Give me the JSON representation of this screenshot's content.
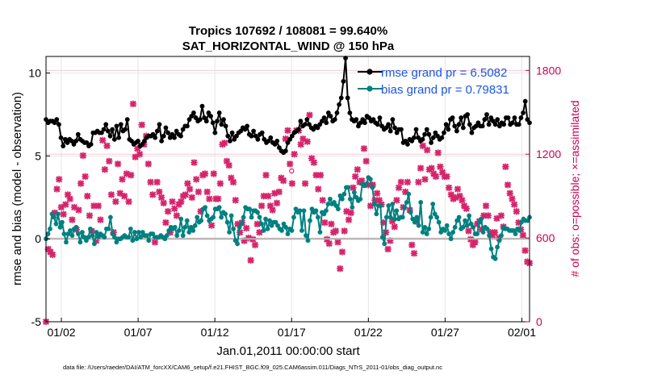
{
  "chart_data": {
    "type": "line",
    "title_line1": "Tropics 107692 / 108081 = 99.640%",
    "title_line2": "SAT_HORIZONTAL_WIND @ 150 hPa",
    "xlabel": "Jan.01,2011 00:00:00 start",
    "ylabel": "rmse and bias (model - observation)",
    "ylabel_right": "# of obs: o=possible; ×=assimilated",
    "xlim": [
      0,
      31.5
    ],
    "ylim": [
      -5,
      11
    ],
    "ylim_right": [
      0,
      1900
    ],
    "x_ticks": [
      {
        "x": 1,
        "label": "01/02"
      },
      {
        "x": 6,
        "label": "01/07"
      },
      {
        "x": 11,
        "label": "01/12"
      },
      {
        "x": 16,
        "label": "01/17"
      },
      {
        "x": 21,
        "label": "01/22"
      },
      {
        "x": 26,
        "label": "01/27"
      },
      {
        "x": 31,
        "label": "02/01"
      }
    ],
    "y_ticks": [
      -5,
      0,
      5,
      10
    ],
    "y_ticks_right": [
      0,
      600,
      1200,
      1800
    ],
    "grid": true,
    "legend_position": "top-right",
    "colors": {
      "rmse": "#000000",
      "bias": "#008080",
      "obs": "#d6246b",
      "zero_line": "#b3b3b3"
    },
    "series": [
      {
        "name": "rmse grand pr = 6.5082",
        "key": "rmse",
        "values": [
          7.2,
          7.0,
          7.1,
          7.1,
          7.0,
          7.2,
          6.9,
          6.1,
          5.6,
          6.0,
          5.8,
          6.0,
          5.9,
          5.7,
          5.9,
          6.3,
          6.0,
          5.9,
          5.8,
          5.8,
          5.6,
          5.7,
          6.4,
          6.4,
          6.5,
          6.4,
          6.4,
          6.6,
          6.9,
          6.5,
          6.2,
          6.6,
          6.0,
          6.8,
          6.1,
          6.9,
          6.5,
          6.6,
          7.2,
          6.0,
          5.9,
          5.7,
          5.8,
          5.9,
          5.6,
          5.7,
          5.9,
          6.1,
          6.2,
          6.2,
          6.3,
          6.1,
          6.5,
          6.9,
          5.9,
          6.2,
          6.7,
          6.4,
          6.1,
          6.3,
          6.1,
          6.5,
          6.3,
          6.2,
          6.6,
          6.8,
          6.8,
          7.2,
          7.4,
          7.6,
          7.3,
          7.1,
          7.2,
          8.0,
          7.3,
          7.1,
          7.6,
          7.4,
          7.0,
          6.4,
          7.1,
          7.6,
          6.9,
          7.2,
          6.8,
          6.2,
          5.9,
          6.4,
          6.0,
          6.2,
          6.4,
          6.5,
          6.7,
          6.6,
          6.8,
          6.3,
          6.2,
          6.5,
          6.2,
          6.0,
          6.3,
          6.4,
          6.0,
          5.8,
          5.9,
          6.1,
          5.8,
          5.7,
          5.9,
          5.5,
          5.3,
          5.2,
          5.3,
          5.8,
          6.0,
          6.2,
          6.4,
          6.5,
          6.6,
          7.1,
          6.8,
          6.9,
          7.2,
          6.9,
          6.7,
          6.6,
          6.8,
          6.7,
          6.9,
          7.1,
          7.3,
          7.0,
          7.6,
          7.4,
          7.1,
          7.2,
          7.6,
          8.1,
          8.5,
          9.5,
          10.9,
          8.5,
          7.6,
          7.2,
          7.1,
          7.2,
          6.8,
          7.0,
          7.2,
          7.0,
          7.4,
          7.3,
          7.1,
          7.2,
          7.0,
          6.9,
          7.3,
          6.8,
          6.6,
          6.7,
          6.9,
          6.5,
          7.2,
          6.7,
          6.4,
          6.6,
          6.6,
          5.8,
          5.9,
          5.7,
          6.0,
          5.9,
          6.1,
          6.6,
          6.1,
          5.9,
          6.0,
          6.3,
          6.6,
          6.3,
          5.8,
          6.1,
          6.4,
          6.2,
          6.0,
          6.1,
          6.4,
          6.9,
          6.6,
          7.2,
          7.3,
          6.8,
          6.5,
          6.9,
          7.3,
          6.7,
          7.4,
          7.5,
          6.9,
          6.4,
          6.7,
          6.8,
          7.0,
          6.8,
          6.8,
          7.2,
          7.5,
          6.9,
          7.3,
          7.1,
          6.9,
          7.2,
          6.8,
          7.0,
          6.9,
          7.3,
          7.3,
          6.9,
          7.0,
          7.3,
          6.9,
          6.9,
          7.3,
          7.6,
          8.3,
          7.2,
          7.0
        ]
      },
      {
        "name": "bias grand pr = 0.79831",
        "key": "bias",
        "values": [
          0.0,
          0.3,
          0.6,
          1.5,
          1.3,
          0.9,
          1.5,
          0.7,
          1.0,
          0.3,
          -0.2,
          0.3,
          0.5,
          0.2,
          0.6,
          0.7,
          0.3,
          -0.2,
          0.4,
          0.1,
          -0.1,
          0.1,
          0.6,
          0.2,
          -0.3,
          0.4,
          0.1,
          0.3,
          0.2,
          0.1,
          0.6,
          0.6,
          1.3,
          0.3,
          0.1,
          -0.2,
          0.0,
          0.0,
          0.1,
          0.2,
          0.1,
          0.1,
          0.6,
          -0.1,
          0.4,
          0.0,
          0.4,
          0.1,
          0.4,
          0.2,
          0.2,
          -0.1,
          0.3,
          0.3,
          0.1,
          0.1,
          0.1,
          0.2,
          0.1,
          0.0,
          0.2,
          0.5,
          0.7,
          0.6,
          0.7,
          0.2,
          0.5,
          1.2,
          0.2,
          0.7,
          1.1,
          0.4,
          0.7,
          0.5,
          0.8,
          1.3,
          1.0,
          1.1,
          1.8,
          1.9,
          1.4,
          1.1,
          1.2,
          1.3,
          1.8,
          1.8,
          1.9,
          1.3,
          1.6,
          1.5,
          1.0,
          0.4,
          1.4,
          0.6,
          -0.1,
          -0.3,
          0.7,
          0.9,
          1.3,
          1.9,
          1.8,
          1.8,
          1.3,
          1.7,
          1.7,
          1.6,
          1.3,
          0.9,
          0.5,
          1.2,
          0.6,
          1.1,
          0.8,
          1.0,
          1.0,
          0.8,
          0.6,
          0.5,
          0.9,
          0.7,
          0.3,
          0.6,
          0.5,
          1.3,
          1.8,
          1.6,
          1.7,
          0.5,
          1.7,
          0.2,
          -0.1,
          1.1,
          1.8,
          1.6,
          1.7,
          1.3,
          0.4,
          1.6,
          1.5,
          1.7,
          2.1,
          2.4,
          2.1,
          2.2,
          2.0,
          1.8,
          2.6,
          2.4,
          2.7,
          3.1,
          3.1,
          2.4,
          1.9,
          2.8,
          2.5,
          2.3,
          2.4,
          3.3,
          3.2,
          3.3,
          3.7,
          3.6,
          3.1,
          2.1,
          1.5,
          2.0,
          2.0,
          0.1,
          -0.3,
          1.3,
          2.0,
          1.3,
          2.1,
          1.2,
          1.7,
          1.2,
          1.3,
          1.3,
          1.9,
          2.2,
          2.7,
          1.6,
          1.2,
          1.0,
          1.3,
          0.8,
          2.2,
          0.4,
          0.7,
          0.3,
          0.6,
          1.3,
          2.1,
          1.5,
          1.3,
          1.0,
          0.4,
          0.6,
          0.5,
          0.8,
          0.3,
          0.0,
          0.4,
          0.7,
          1.1,
          1.3,
          0.6,
          0.7,
          1.1,
          0.8,
          1.4,
          0.9,
          0.7,
          0.3,
          0.3,
          1.0,
          1.2,
          0.4,
          0.7,
          0.6,
          0.2,
          -0.6,
          -1.1,
          -1.2,
          -0.5,
          -0.1,
          0.2,
          0.7,
          0.6,
          0.6,
          0.5,
          0.5,
          0.5,
          0.3,
          0.6,
          0.5,
          1.0,
          1.2,
          1.1,
          1.1,
          1.3
        ]
      },
      {
        "name": "assimilated observations",
        "key": "obs_assimilated",
        "values": [
          0,
          520,
          500,
          480,
          780,
          950,
          1020,
          820,
          770,
          840,
          910,
          880,
          730,
          820,
          660,
          800,
          990,
          1190,
          1040,
          900,
          760,
          650,
          830,
          580,
          830,
          730,
          1300,
          1090,
          1260,
          1150,
          910,
          640,
          860,
          1130,
          920,
          1020,
          900,
          1060,
          860,
          1050,
          1560,
          1180,
          1240,
          1200,
          1410,
          1270,
          1330,
          1130,
          1000,
          910,
          570,
          1000,
          930,
          890,
          850,
          710,
          790,
          640,
          860,
          810,
          760,
          840,
          860,
          900,
          910,
          990,
          950,
          890,
          1140,
          1020,
          930,
          790,
          1050,
          1060,
          930,
          880,
          690,
          1060,
          880,
          880,
          990,
          1270,
          1280,
          1150,
          1120,
          1030,
          1000,
          870,
          700,
          640,
          710,
          580,
          670,
          600,
          440,
          590,
          550,
          700,
          640,
          830,
          900,
          1050,
          900,
          830,
          800,
          920,
          850,
          930,
          1030,
          1010,
          1310,
          1370,
          1130,
          990,
          1200,
          1370,
          1370,
          1270,
          1310,
          990,
          1290,
          1480,
          1170,
          1140,
          1050,
          950,
          1050,
          870,
          710,
          590,
          560,
          700,
          640,
          650,
          570,
          380,
          500,
          650,
          790,
          730,
          780,
          960,
          1040,
          1090,
          1000,
          1010,
          1240,
          1150,
          980,
          830,
          980,
          870,
          920,
          870,
          840,
          710,
          640,
          520,
          580,
          720,
          680,
          870,
          960,
          1000,
          820,
          930,
          1000,
          800,
          550,
          490,
          720,
          1000,
          1100,
          1260,
          1020,
          1230,
          1090,
          1100,
          1060,
          1040,
          1210,
          1110,
          1070,
          1040,
          1040,
          960,
          910,
          880,
          890,
          950,
          900,
          870,
          830,
          810,
          650,
          590,
          550,
          570,
          700,
          720,
          660,
          760,
          830,
          760,
          640,
          620,
          640,
          740,
          600,
          760,
          680,
          1110,
          980,
          920,
          880,
          840,
          790,
          710,
          660,
          620,
          510,
          430,
          420
        ]
      }
    ],
    "obs_possible_marker": {
      "x": 16.0,
      "y_right": 1080
    },
    "footer": "data file: /Users/raeder/DAI/ATM_forcXX/CAM6_setup/f.e21.FHIST_BGC.f09_025.CAM6assim.011/Diags_NTrS_2011-01/obs_diag_output.nc"
  }
}
